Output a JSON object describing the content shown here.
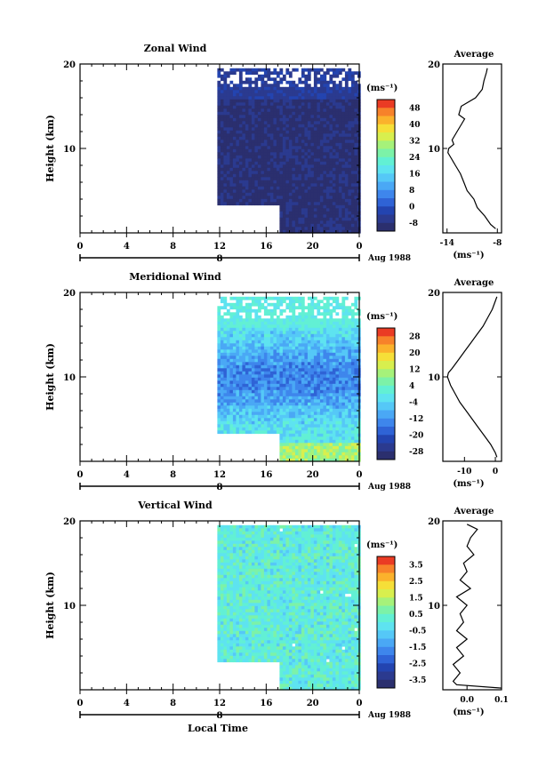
{
  "figure": {
    "y_axis_label": "Height (km)",
    "x_axis_title": "Local Time",
    "date_label": "Aug 1988",
    "day_marker_label": "8",
    "average_title": "Average",
    "unit_label": "(ms⁻¹)"
  },
  "chart_data": [
    {
      "type": "heatmap",
      "title": "Zonal Wind",
      "xlabel": "",
      "ylabel": "Height (km)",
      "x_ticks": [
        "0",
        "4",
        "8",
        "12",
        "16",
        "20",
        "0"
      ],
      "y_ticks": [
        "10",
        "20"
      ],
      "xlim": [
        0,
        24
      ],
      "ylim": [
        0,
        20
      ],
      "data_extent": {
        "x_start_hours": 11.8,
        "x_step_to_hours": 17.0,
        "y_bottom_early_km": 3.6,
        "y_bottom_late_km": 0.2,
        "y_top_km": 19.5
      },
      "colorbar": {
        "unit": "(ms⁻¹)",
        "labels": [
          "48",
          "40",
          "32",
          "24",
          "16",
          "8",
          "0",
          "-8"
        ],
        "min": -12,
        "max": 52
      },
      "dominant_value": -8,
      "average_profile": {
        "title": "Average",
        "xlabel": "(ms⁻¹)",
        "x_ticks": [
          "-14",
          "-8"
        ],
        "y_ticks": [
          "10",
          "20"
        ],
        "xlim": [
          -14.5,
          -7.5
        ],
        "height_km": [
          0.5,
          1,
          2,
          3,
          4,
          5,
          6,
          7,
          8,
          9,
          9.5,
          10,
          10.5,
          11,
          12,
          13,
          13.5,
          14,
          15,
          16,
          17,
          18,
          19,
          19.5
        ],
        "values": [
          -8.2,
          -8.8,
          -9.5,
          -10.4,
          -10.8,
          -11.6,
          -12.0,
          -12.4,
          -13.0,
          -13.6,
          -13.9,
          -13.8,
          -13.2,
          -13.4,
          -12.8,
          -12.2,
          -11.9,
          -12.6,
          -12.3,
          -10.6,
          -9.8,
          -9.6,
          -9.3,
          -9.2
        ]
      }
    },
    {
      "type": "heatmap",
      "title": "Meridional Wind",
      "xlabel": "",
      "ylabel": "Height (km)",
      "x_ticks": [
        "0",
        "4",
        "8",
        "12",
        "16",
        "20",
        "0"
      ],
      "y_ticks": [
        "10",
        "20"
      ],
      "xlim": [
        0,
        24
      ],
      "ylim": [
        0,
        20
      ],
      "data_extent": {
        "x_start_hours": 11.8,
        "x_step_to_hours": 17.0,
        "y_bottom_early_km": 3.6,
        "y_bottom_late_km": 0.2,
        "y_top_km": 19.5
      },
      "colorbar": {
        "unit": "(ms⁻¹)",
        "labels": [
          "28",
          "20",
          "12",
          "4",
          "-4",
          "-12",
          "-20",
          "-28"
        ],
        "min": -32,
        "max": 32
      },
      "average_profile": {
        "title": "Average",
        "xlabel": "(ms⁻¹)",
        "x_ticks": [
          "-10",
          "0"
        ],
        "y_ticks": [
          "10",
          "20"
        ],
        "xlim": [
          -17,
          2
        ],
        "height_km": [
          0.5,
          1,
          2,
          3,
          4,
          5,
          6,
          7,
          8,
          9,
          10,
          10.5,
          11,
          12,
          13,
          14,
          15,
          16,
          17,
          18,
          19,
          19.5
        ],
        "values": [
          0.5,
          0.0,
          -1.5,
          -3.5,
          -5.5,
          -7.5,
          -9.5,
          -11.5,
          -13.0,
          -14.5,
          -15.5,
          -15.2,
          -14.0,
          -12.0,
          -10.0,
          -8.0,
          -6.0,
          -4.0,
          -2.5,
          -1.0,
          0.0,
          0.5
        ]
      }
    },
    {
      "type": "heatmap",
      "title": "Vertical Wind",
      "xlabel": "Local Time",
      "ylabel": "Height (km)",
      "x_ticks": [
        "0",
        "4",
        "8",
        "12",
        "16",
        "20",
        "0"
      ],
      "y_ticks": [
        "10",
        "20"
      ],
      "xlim": [
        0,
        24
      ],
      "ylim": [
        0,
        20
      ],
      "data_extent": {
        "x_start_hours": 11.8,
        "x_step_to_hours": 17.0,
        "y_bottom_early_km": 3.6,
        "y_bottom_late_km": 0.2,
        "y_top_km": 19.5
      },
      "colorbar": {
        "unit": "(ms⁻¹)",
        "labels": [
          "3.5",
          "2.5",
          "1.5",
          "0.5",
          "-0.5",
          "-1.5",
          "-2.5",
          "-3.5"
        ],
        "min": -4,
        "max": 4
      },
      "average_profile": {
        "title": "Average",
        "xlabel": "(ms⁻¹)",
        "x_ticks": [
          "0.0",
          "0.1"
        ],
        "y_ticks": [
          "10",
          "20"
        ],
        "xlim": [
          -0.07,
          0.1
        ],
        "height_km": [
          0.2,
          0.6,
          1,
          2,
          3,
          4,
          5,
          6,
          7,
          8,
          9,
          10,
          11,
          12,
          13,
          14,
          15,
          16,
          17,
          18,
          19,
          19.6
        ],
        "values": [
          0.1,
          -0.03,
          -0.04,
          -0.02,
          -0.04,
          -0.01,
          -0.03,
          0.0,
          -0.03,
          -0.01,
          -0.02,
          0.0,
          -0.03,
          0.01,
          -0.02,
          0.0,
          -0.01,
          0.02,
          0.0,
          0.01,
          0.03,
          0.0
        ]
      }
    }
  ]
}
